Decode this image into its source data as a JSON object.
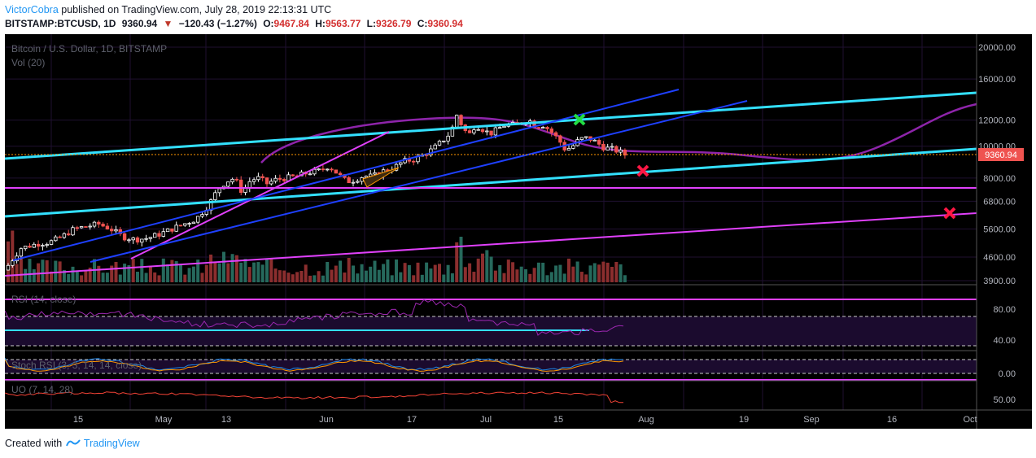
{
  "header": {
    "author": "VictorCobra",
    "published_text": "published on TradingView.com, July 28, 2019 22:13:31 UTC",
    "symbol": "BITSTAMP:BTCUSD, 1D",
    "last": "9360.94",
    "change": "−120.43 (−1.27%)",
    "o_label": "O:",
    "o_value": "9467.84",
    "h_label": "H:",
    "h_value": "9563.77",
    "l_label": "L:",
    "l_value": "9326.79",
    "c_label": "C:",
    "c_value": "9360.94"
  },
  "chart_title": "Bitcoin / U.S. Dollar, 1D, BITSTAMP",
  "vol_label": "Vol (20)",
  "rsi_label": "RSI (14, close)",
  "stoch_label": "Stoch RSI (3, 3, 14, 14, close)",
  "uo_label": "UO (7, 14, 28)",
  "price_tag": "9360.94",
  "footer": {
    "created_with": "Created with",
    "brand": "TradingView"
  },
  "colors": {
    "bg": "#000000",
    "up": "#ffffff",
    "down": "#ef5350",
    "cyan": "#33e0ff",
    "magenta": "#e040fb",
    "blue": "#1e40ff",
    "ma": "#8e24aa",
    "vol_up": "#26695c",
    "vol_down": "#8b2e2e",
    "rsi_line": "#9c27b0",
    "stoch_k": "#1e88e5",
    "stoch_d": "#ff9800",
    "uo_line": "#f44336",
    "green_x": "#22dd44",
    "red_x": "#ff1744"
  },
  "chart_data": {
    "type": "candlestick",
    "symbol": "BITSTAMP:BTCUSD",
    "timeframe": "1D",
    "y_scale": "log",
    "y_ticks": [
      "20000.00",
      "16000.00",
      "12000.00",
      "10000.00",
      "8000.00",
      "6800.00",
      "5600.00",
      "4600.00",
      "3900.00"
    ],
    "x_ticks": [
      "15",
      "May",
      "13",
      "Jun",
      "17",
      "Jul",
      "15",
      "Aug",
      "19",
      "Sep",
      "16",
      "Oct"
    ],
    "last_price": 9360.94,
    "rsi_ticks": [
      "80.00",
      "40.00"
    ],
    "stoch_ticks": [
      "0.00"
    ],
    "uo_ticks": [
      "50.00"
    ],
    "annotations": [
      "green X at ~11700 mid-July",
      "red X at ~8200 early August",
      "red X at ~6200 late September"
    ]
  }
}
